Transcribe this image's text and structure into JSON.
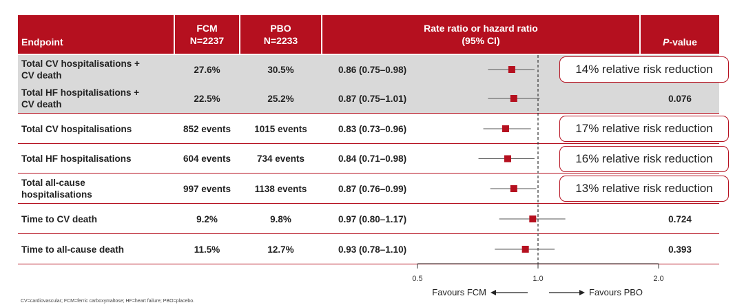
{
  "header": {
    "endpoint": "Endpoint",
    "fcm_line1": "FCM",
    "fcm_line2": "N=2237",
    "pbo_line1": "PBO",
    "pbo_line2": "N=2233",
    "ratio_line1": "Rate ratio or hazard ratio",
    "ratio_line2": "(95% CI)",
    "pvalue_italic": "P",
    "pvalue_rest": "-value"
  },
  "colors": {
    "header_bg": "#b5101f",
    "marker": "#b5101f",
    "shaded_row": "#d9d9d9",
    "annotation_border": "#b5101f"
  },
  "rows": [
    {
      "endpoint_line1": "Total CV hospitalisations +",
      "endpoint_line2": "CV death",
      "fcm": "27.6%",
      "pbo": "30.5%",
      "ratio": "0.86 (0.75–0.98)",
      "pvalue": "",
      "annotation": "14% relative risk reduction",
      "shaded": true
    },
    {
      "endpoint_line1": "Total HF hospitalisations +",
      "endpoint_line2": "CV death",
      "fcm": "22.5%",
      "pbo": "25.2%",
      "ratio": "0.87 (0.75–1.01)",
      "pvalue": "0.076",
      "annotation": "",
      "shaded": true
    },
    {
      "endpoint_line1": "Total CV hospitalisations",
      "endpoint_line2": "",
      "fcm": "852 events",
      "pbo": "1015 events",
      "ratio": "0.83 (0.73–0.96)",
      "pvalue": "",
      "annotation": "17% relative risk reduction",
      "shaded": false
    },
    {
      "endpoint_line1": "Total HF hospitalisations",
      "endpoint_line2": "",
      "fcm": "604 events",
      "pbo": "734 events",
      "ratio": "0.84 (0.71–0.98)",
      "pvalue": "",
      "annotation": "16% relative risk reduction",
      "shaded": false
    },
    {
      "endpoint_line1": "Total all-cause",
      "endpoint_line2": "hospitalisations",
      "fcm": "997 events",
      "pbo": "1138 events",
      "ratio": "0.87 (0.76–0.99)",
      "pvalue": "",
      "annotation": "13% relative risk reduction",
      "shaded": false
    },
    {
      "endpoint_line1": "Time to CV death",
      "endpoint_line2": "",
      "fcm": "9.2%",
      "pbo": "9.8%",
      "ratio": "0.97 (0.80–1.17)",
      "pvalue": "0.724",
      "annotation": "",
      "shaded": false
    },
    {
      "endpoint_line1": "Time to all-cause death",
      "endpoint_line2": "",
      "fcm": "11.5%",
      "pbo": "12.7%",
      "ratio": "0.93 (0.78–1.10)",
      "pvalue": "0.393",
      "annotation": "",
      "shaded": false
    }
  ],
  "footer": "CV=cardiovascular; FCM=ferric carboxymaltose; HF=heart failure; PBO=placebo.",
  "chart_data": {
    "type": "forest",
    "xscale": "log",
    "xlim": [
      0.5,
      2.0
    ],
    "xticks": [
      "0.5",
      "1.0",
      "2.0"
    ],
    "reference_line": 1.0,
    "favours_left": "Favours FCM",
    "favours_right": "Favours PBO",
    "points": [
      {
        "estimate": 0.86,
        "lower": 0.75,
        "upper": 0.98
      },
      {
        "estimate": 0.87,
        "lower": 0.75,
        "upper": 1.01
      },
      {
        "estimate": 0.83,
        "lower": 0.73,
        "upper": 0.96
      },
      {
        "estimate": 0.84,
        "lower": 0.71,
        "upper": 0.98
      },
      {
        "estimate": 0.87,
        "lower": 0.76,
        "upper": 0.99
      },
      {
        "estimate": 0.97,
        "lower": 0.8,
        "upper": 1.17
      },
      {
        "estimate": 0.93,
        "lower": 0.78,
        "upper": 1.1
      }
    ]
  }
}
